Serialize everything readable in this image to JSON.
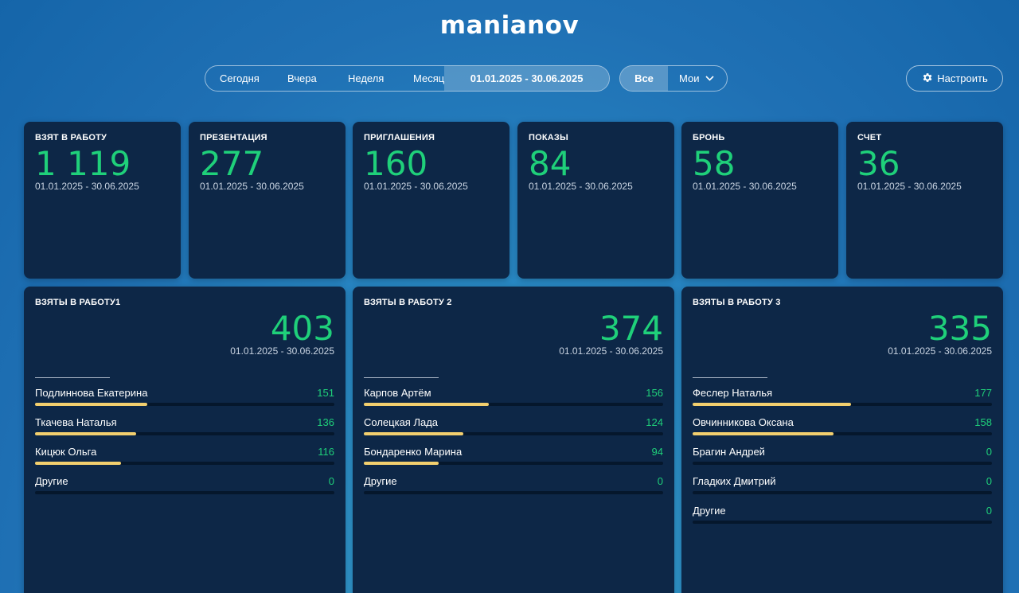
{
  "app": {
    "title": "manianov"
  },
  "period": {
    "options": [
      "Сегодня",
      "Вчера",
      "Неделя",
      "Месяц"
    ],
    "range": "01.01.2025 - 30.06.2025"
  },
  "owner": {
    "all": "Все",
    "mine": "Мои"
  },
  "settings": {
    "label": "Настроить",
    "icon": "gear-icon"
  },
  "stats": [
    {
      "title": "ВЗЯТ В РАБОТУ",
      "value": "1 119",
      "period": "01.01.2025 - 30.06.2025"
    },
    {
      "title": "ПРЕЗЕНТАЦИЯ",
      "value": "277",
      "period": "01.01.2025 - 30.06.2025"
    },
    {
      "title": "ПРИГЛАШЕНИЯ",
      "value": "160",
      "period": "01.01.2025 - 30.06.2025"
    },
    {
      "title": "ПОКАЗЫ",
      "value": "84",
      "period": "01.01.2025 - 30.06.2025"
    },
    {
      "title": "БРОНЬ",
      "value": "58",
      "period": "01.01.2025 - 30.06.2025"
    },
    {
      "title": "СЧЕТ",
      "value": "36",
      "period": "01.01.2025 - 30.06.2025"
    }
  ],
  "teams": [
    {
      "title": "ВЗЯТЫ В РАБОТУ1",
      "total": "403",
      "period": "01.01.2025 - 30.06.2025",
      "rows": [
        {
          "name": "Подлиннова Екатерина",
          "value": "151",
          "fraction": 0.375
        },
        {
          "name": "Ткачева Наталья",
          "value": "136",
          "fraction": 0.337
        },
        {
          "name": "Кицюк Ольга",
          "value": "116",
          "fraction": 0.288
        },
        {
          "name": "Другие",
          "value": "0",
          "fraction": 0
        }
      ]
    },
    {
      "title": "ВЗЯТЫ В РАБОТУ 2",
      "total": "374",
      "period": "01.01.2025 - 30.06.2025",
      "rows": [
        {
          "name": "Карпов Артём",
          "value": "156",
          "fraction": 0.417
        },
        {
          "name": "Солецкая Лада",
          "value": "124",
          "fraction": 0.332
        },
        {
          "name": "Бондаренко Марина",
          "value": "94",
          "fraction": 0.251
        },
        {
          "name": "Другие",
          "value": "0",
          "fraction": 0
        }
      ]
    },
    {
      "title": "ВЗЯТЫ В РАБОТУ 3",
      "total": "335",
      "period": "01.01.2025 - 30.06.2025",
      "rows": [
        {
          "name": "Феслер Наталья",
          "value": "177",
          "fraction": 0.528
        },
        {
          "name": "Овчинникова Оксана",
          "value": "158",
          "fraction": 0.472
        },
        {
          "name": "Брагин Андрей",
          "value": "0",
          "fraction": 0
        },
        {
          "name": "Гладких Дмитрий",
          "value": "0",
          "fraction": 0
        },
        {
          "name": "Другие",
          "value": "0",
          "fraction": 0
        }
      ]
    }
  ]
}
